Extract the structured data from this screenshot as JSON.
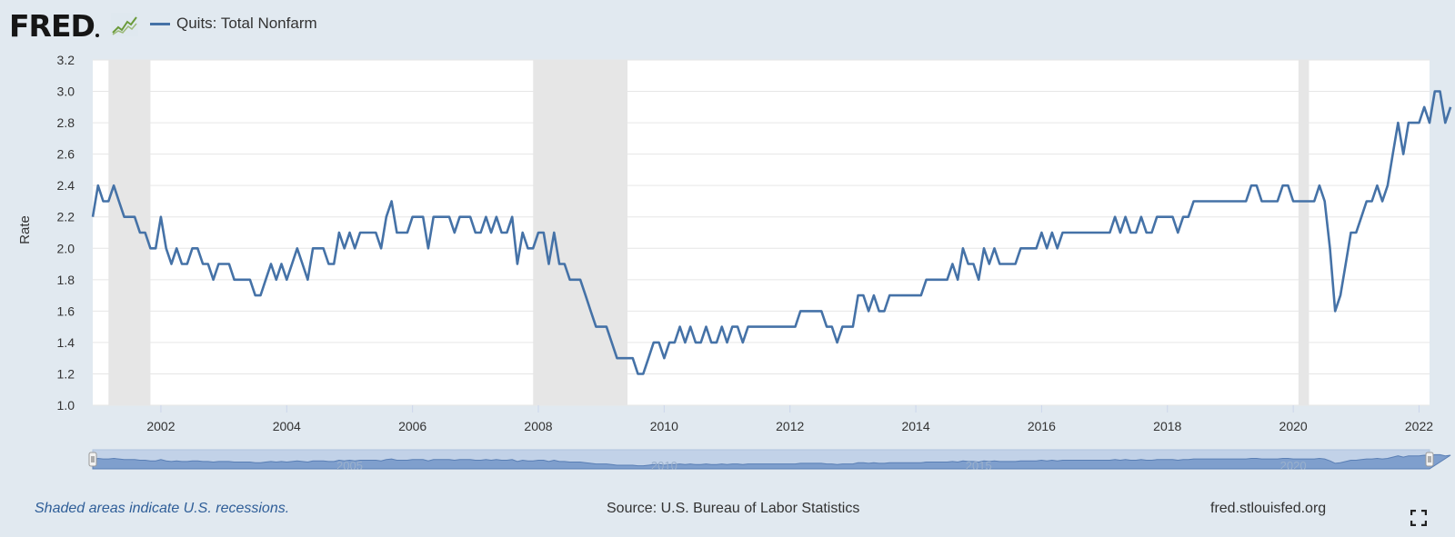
{
  "header": {
    "logo_text": "FRED",
    "legend_label": "Quits: Total Nonfarm"
  },
  "footer": {
    "recession_note": "Shaded areas indicate U.S. recessions.",
    "source": "Source: U.S. Bureau of Labor Statistics",
    "url": "fred.stlouisfed.org"
  },
  "colors": {
    "series": "#4572a7",
    "recession": "#e6e6e6",
    "background": "#e1e9f0",
    "plot_bg": "#ffffff"
  },
  "icons": {
    "logo_chart": "line-chart-icon",
    "fullscreen": "fullscreen-icon"
  },
  "chart_data": {
    "type": "line",
    "title": "",
    "xlabel": "",
    "ylabel": "Rate",
    "ylim": [
      1.0,
      3.2
    ],
    "xlim": [
      "2000-12",
      "2022-03"
    ],
    "yticks": [
      "1.0",
      "1.2",
      "1.4",
      "1.6",
      "1.8",
      "2.0",
      "2.2",
      "2.4",
      "2.6",
      "2.8",
      "3.0",
      "3.2"
    ],
    "xticks": [
      "2002",
      "2004",
      "2006",
      "2008",
      "2010",
      "2012",
      "2014",
      "2016",
      "2018",
      "2020",
      "2022"
    ],
    "grid": true,
    "legend": "top-left",
    "recessions": [
      [
        "2001-03",
        "2001-11"
      ],
      [
        "2007-12",
        "2009-06"
      ],
      [
        "2020-02",
        "2020-04"
      ]
    ],
    "navigator_labels": [
      "2005",
      "2010",
      "2015",
      "2020"
    ],
    "series": [
      {
        "name": "Quits: Total Nonfarm",
        "x_start": "2000-12",
        "frequency": "monthly",
        "values": [
          2.2,
          2.4,
          2.3,
          2.3,
          2.4,
          2.3,
          2.2,
          2.2,
          2.2,
          2.1,
          2.1,
          2.0,
          2.0,
          2.2,
          2.0,
          1.9,
          2.0,
          1.9,
          1.9,
          2.0,
          2.0,
          1.9,
          1.9,
          1.8,
          1.9,
          1.9,
          1.9,
          1.8,
          1.8,
          1.8,
          1.8,
          1.7,
          1.7,
          1.8,
          1.9,
          1.8,
          1.9,
          1.8,
          1.9,
          2.0,
          1.9,
          1.8,
          2.0,
          2.0,
          2.0,
          1.9,
          1.9,
          2.1,
          2.0,
          2.1,
          2.0,
          2.1,
          2.1,
          2.1,
          2.1,
          2.0,
          2.2,
          2.3,
          2.1,
          2.1,
          2.1,
          2.2,
          2.2,
          2.2,
          2.0,
          2.2,
          2.2,
          2.2,
          2.2,
          2.1,
          2.2,
          2.2,
          2.2,
          2.1,
          2.1,
          2.2,
          2.1,
          2.2,
          2.1,
          2.1,
          2.2,
          1.9,
          2.1,
          2.0,
          2.0,
          2.1,
          2.1,
          1.9,
          2.1,
          1.9,
          1.9,
          1.8,
          1.8,
          1.8,
          1.7,
          1.6,
          1.5,
          1.5,
          1.5,
          1.4,
          1.3,
          1.3,
          1.3,
          1.3,
          1.2,
          1.2,
          1.3,
          1.4,
          1.4,
          1.3,
          1.4,
          1.4,
          1.5,
          1.4,
          1.5,
          1.4,
          1.4,
          1.5,
          1.4,
          1.4,
          1.5,
          1.4,
          1.5,
          1.5,
          1.4,
          1.5,
          1.5,
          1.5,
          1.5,
          1.5,
          1.5,
          1.5,
          1.5,
          1.5,
          1.5,
          1.6,
          1.6,
          1.6,
          1.6,
          1.6,
          1.5,
          1.5,
          1.4,
          1.5,
          1.5,
          1.5,
          1.7,
          1.7,
          1.6,
          1.7,
          1.6,
          1.6,
          1.7,
          1.7,
          1.7,
          1.7,
          1.7,
          1.7,
          1.7,
          1.8,
          1.8,
          1.8,
          1.8,
          1.8,
          1.9,
          1.8,
          2.0,
          1.9,
          1.9,
          1.8,
          2.0,
          1.9,
          2.0,
          1.9,
          1.9,
          1.9,
          1.9,
          2.0,
          2.0,
          2.0,
          2.0,
          2.1,
          2.0,
          2.1,
          2.0,
          2.1,
          2.1,
          2.1,
          2.1,
          2.1,
          2.1,
          2.1,
          2.1,
          2.1,
          2.1,
          2.2,
          2.1,
          2.2,
          2.1,
          2.1,
          2.2,
          2.1,
          2.1,
          2.2,
          2.2,
          2.2,
          2.2,
          2.1,
          2.2,
          2.2,
          2.3,
          2.3,
          2.3,
          2.3,
          2.3,
          2.3,
          2.3,
          2.3,
          2.3,
          2.3,
          2.3,
          2.4,
          2.4,
          2.3,
          2.3,
          2.3,
          2.3,
          2.4,
          2.4,
          2.3,
          2.3,
          2.3,
          2.3,
          2.3,
          2.4,
          2.3,
          2.0,
          1.6,
          1.7,
          1.9,
          2.1,
          2.1,
          2.2,
          2.3,
          2.3,
          2.4,
          2.3,
          2.4,
          2.6,
          2.8,
          2.6,
          2.8,
          2.8,
          2.8,
          2.9,
          2.8,
          3.0,
          3.0,
          2.8,
          2.9
        ]
      }
    ]
  }
}
